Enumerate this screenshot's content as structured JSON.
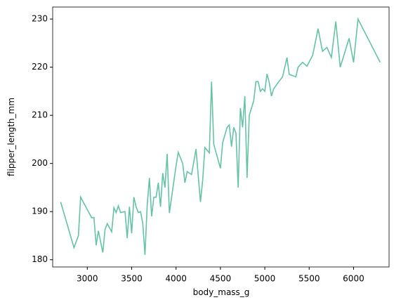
{
  "chart_data": {
    "type": "line",
    "xlabel": "body_mass_g",
    "ylabel": "flipper_length_mm",
    "x": [
      2700,
      2850,
      2900,
      2925,
      3050,
      3075,
      3100,
      3125,
      3175,
      3200,
      3225,
      3275,
      3300,
      3325,
      3350,
      3375,
      3425,
      3450,
      3475,
      3500,
      3525,
      3550,
      3575,
      3600,
      3625,
      3650,
      3675,
      3700,
      3725,
      3750,
      3775,
      3800,
      3825,
      3850,
      3875,
      3900,
      3925,
      4000,
      4025,
      4075,
      4100,
      4125,
      4175,
      4225,
      4275,
      4300,
      4325,
      4375,
      4400,
      4425,
      4500,
      4525,
      4575,
      4600,
      4625,
      4650,
      4675,
      4700,
      4725,
      4750,
      4775,
      4800,
      4825,
      4875,
      4900,
      4925,
      4950,
      4975,
      5000,
      5025,
      5050,
      5075,
      5100,
      5150,
      5200,
      5250,
      5275,
      5350,
      5375,
      5425,
      5475,
      5540,
      5600,
      5650,
      5700,
      5750,
      5800,
      5850,
      5950,
      6000,
      6050,
      6300
    ],
    "series": [
      {
        "name": "flipper_length_mm",
        "color": "#66c2a5",
        "values": [
          192,
          182.5,
          185,
          193,
          188.7,
          188.8,
          183,
          186,
          181.5,
          186.3,
          187.5,
          185.8,
          190.8,
          189.8,
          191.2,
          189.8,
          190,
          184.5,
          191,
          185.5,
          193,
          191,
          189.8,
          190,
          187.6,
          181,
          191.3,
          197,
          189,
          193,
          193,
          196,
          191,
          198,
          195,
          202,
          189.7,
          199.5,
          202.3,
          200,
          196,
          198.3,
          197.7,
          203,
          192,
          196.5,
          203.3,
          202.2,
          217,
          204,
          199,
          204.3,
          207.5,
          208,
          203.5,
          207.5,
          206.3,
          195,
          211.5,
          207.5,
          214,
          197,
          210,
          213,
          217,
          217,
          215,
          215.5,
          215,
          218.6,
          216.8,
          214,
          215.5,
          216.8,
          218,
          222,
          218.5,
          218,
          220,
          221,
          220.2,
          222.5,
          228,
          223.3,
          224.1,
          222,
          229.5,
          220,
          226,
          221,
          230,
          221
        ]
      }
    ],
    "xlim": [
      2610,
      6400
    ],
    "ylim": [
      178.5,
      232.5
    ],
    "xticks": [
      3000,
      3500,
      4000,
      4500,
      5000,
      5500,
      6000
    ],
    "yticks": [
      180,
      190,
      200,
      210,
      220,
      230
    ],
    "grid": false
  }
}
